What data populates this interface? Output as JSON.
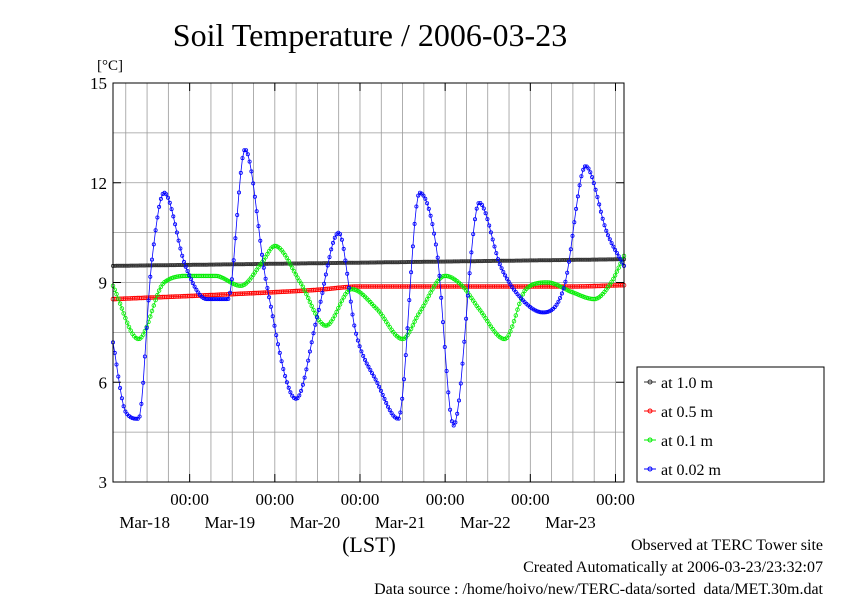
{
  "chart_data": {
    "type": "line",
    "title": "Soil Temperature / 2006-03-23",
    "ylabel": "[°C]",
    "xlabel": "(LST)",
    "ylim": [
      3,
      15
    ],
    "yticks": [
      3,
      6,
      9,
      12,
      15
    ],
    "xlim": [
      -0.9,
      5.1
    ],
    "x_unit": "days relative to 2006-03-18 00:00 LST",
    "xtick_time_label": "00:00",
    "xticks": [
      {
        "x": 0,
        "date": "Mar-18"
      },
      {
        "x": 1,
        "date": "Mar-19"
      },
      {
        "x": 2,
        "date": "Mar-20"
      },
      {
        "x": 3,
        "date": "Mar-21"
      },
      {
        "x": 4,
        "date": "Mar-22"
      },
      {
        "x": 5,
        "date": "Mar-23"
      }
    ],
    "grid": true,
    "legend_position": "right",
    "series": [
      {
        "name": "at 1.0 m",
        "color": "#333333",
        "x": [
          -0.9,
          5.1
        ],
        "y": [
          9.5,
          9.7
        ]
      },
      {
        "name": "at 0.5 m",
        "color": "#ff0000",
        "x": [
          -0.9,
          0.5,
          1.5,
          2.0,
          2.5,
          3.5,
          4.5,
          5.1
        ],
        "y": [
          8.5,
          8.65,
          8.78,
          8.88,
          8.88,
          8.88,
          8.88,
          8.92
        ]
      },
      {
        "name": "at 0.1 m",
        "color": "#00ee00",
        "x": [
          -0.9,
          -0.6,
          -0.3,
          0.0,
          0.3,
          0.6,
          0.85,
          1.0,
          1.3,
          1.6,
          1.9,
          2.2,
          2.5,
          2.7,
          3.0,
          3.2,
          3.4,
          3.7,
          3.95,
          4.2,
          4.5,
          4.75,
          4.95,
          5.1
        ],
        "y": [
          8.9,
          7.3,
          9.0,
          9.2,
          9.2,
          8.9,
          9.6,
          10.1,
          9.0,
          7.7,
          8.8,
          8.2,
          7.3,
          8.1,
          9.2,
          8.9,
          8.2,
          7.3,
          8.8,
          9.0,
          8.7,
          8.5,
          9.0,
          9.8
        ]
      },
      {
        "name": "at 0.02 m",
        "color": "#0000ff",
        "x": [
          -0.9,
          -0.75,
          -0.6,
          -0.45,
          -0.3,
          -0.05,
          0.2,
          0.45,
          0.65,
          0.9,
          1.25,
          1.5,
          1.75,
          1.95,
          2.2,
          2.45,
          2.7,
          2.9,
          3.1,
          3.4,
          3.65,
          3.9,
          4.15,
          4.4,
          4.65,
          4.9,
          5.1
        ],
        "y": [
          7.2,
          5.1,
          4.9,
          9.5,
          11.7,
          9.5,
          8.5,
          8.5,
          13.0,
          9.0,
          5.5,
          8.0,
          10.5,
          7.5,
          6.0,
          4.9,
          11.7,
          10.0,
          4.7,
          11.4,
          9.5,
          8.5,
          8.1,
          8.9,
          12.5,
          10.5,
          9.5
        ]
      }
    ]
  },
  "footer": {
    "line1": "Observed at TERC Tower site",
    "line2": "Created Automatically at 2006-03-23/23:32:07",
    "line3": "Data source : /home/hoivo/new/TERC-data/sorted_data/MET.30m.dat"
  }
}
